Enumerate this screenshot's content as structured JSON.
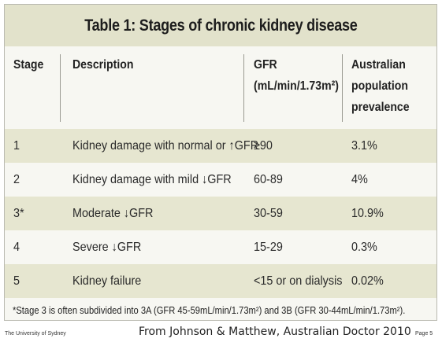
{
  "table": {
    "title": "Table 1: Stages of chronic kidney disease",
    "headers": {
      "stage": "Stage",
      "description": "Description",
      "gfr_line1": "GFR",
      "gfr_line2": "(mL/min/1.73m²)",
      "prev_line1": "Australian",
      "prev_line2": "population",
      "prev_line3": "prevalence"
    },
    "rows": [
      {
        "stage": "1",
        "description": "Kidney damage with normal or ↑GFR",
        "gfr": "≥90",
        "prevalence": "3.1%"
      },
      {
        "stage": "2",
        "description": "Kidney damage with mild ↓GFR",
        "gfr": "60-89",
        "prevalence": "4%"
      },
      {
        "stage": "3*",
        "description": "Moderate ↓GFR",
        "gfr": "30-59",
        "prevalence": "10.9%"
      },
      {
        "stage": "4",
        "description": "Severe ↓GFR",
        "gfr": "15-29",
        "prevalence": "0.3%"
      },
      {
        "stage": "5",
        "description": "Kidney failure",
        "gfr": "<15 or on dialysis",
        "prevalence": "0.02%"
      }
    ],
    "footnote": "*Stage 3 is often subdivided into 3A (GFR 45-59mL/min/1.73m²) and 3B (GFR 30-44mL/min/1.73m²)."
  },
  "footer": {
    "institution": "The University of Sydney",
    "source": "From Johnson & Matthew, Australian Doctor 2010",
    "page": "Page 5"
  },
  "colors": {
    "title_band": "#e2e2cb",
    "row_shade": "#e6e6d0",
    "row_light": "#f7f7f2"
  }
}
